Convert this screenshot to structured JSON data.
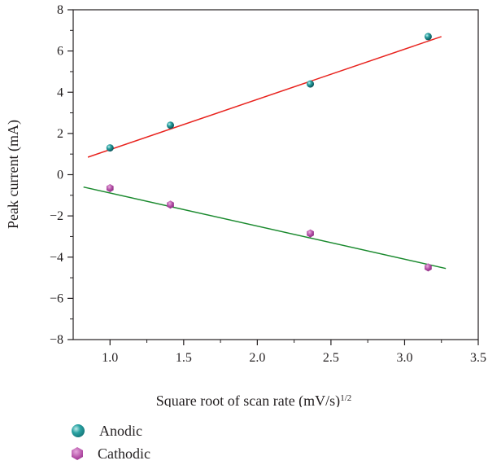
{
  "chart_data": {
    "type": "scatter",
    "xlabel": "Square root of scan rate (mV/s)",
    "xlabel_superscript": "1/2",
    "ylabel": "Peak current (mA)",
    "xlim": [
      0.75,
      3.5
    ],
    "ylim": [
      -8,
      8
    ],
    "x_ticks": [
      1.0,
      1.5,
      2.0,
      2.5,
      3.0,
      3.5
    ],
    "x_tick_labels": [
      "1.0",
      "1.5",
      "2.0",
      "2.5",
      "3.0",
      "3.5"
    ],
    "y_ticks": [
      -8,
      -6,
      -4,
      -2,
      0,
      2,
      4,
      6,
      8
    ],
    "y_tick_labels": [
      "−8",
      "−6",
      "−4",
      "−2",
      "0",
      "2",
      "4",
      "6",
      "8"
    ],
    "grid": false,
    "legend_position": "bottom-left",
    "series": [
      {
        "name": "Anodic",
        "marker": "sphere",
        "color": "#1f8a8c",
        "points": [
          [
            1.0,
            1.3
          ],
          [
            1.41,
            2.4
          ],
          [
            2.36,
            4.4
          ],
          [
            3.16,
            6.7
          ]
        ],
        "fit": {
          "color": "#e8231e",
          "x": [
            0.85,
            3.25
          ],
          "y": [
            0.85,
            6.7
          ]
        }
      },
      {
        "name": "Cathodic",
        "marker": "hexagon",
        "color": "#b04aa3",
        "points": [
          [
            1.0,
            -0.65
          ],
          [
            1.41,
            -1.45
          ],
          [
            2.36,
            -2.85
          ],
          [
            3.16,
            -4.5
          ]
        ],
        "fit": {
          "color": "#1a8a2e",
          "x": [
            0.82,
            3.28
          ],
          "y": [
            -0.6,
            -4.55
          ]
        }
      }
    ]
  }
}
